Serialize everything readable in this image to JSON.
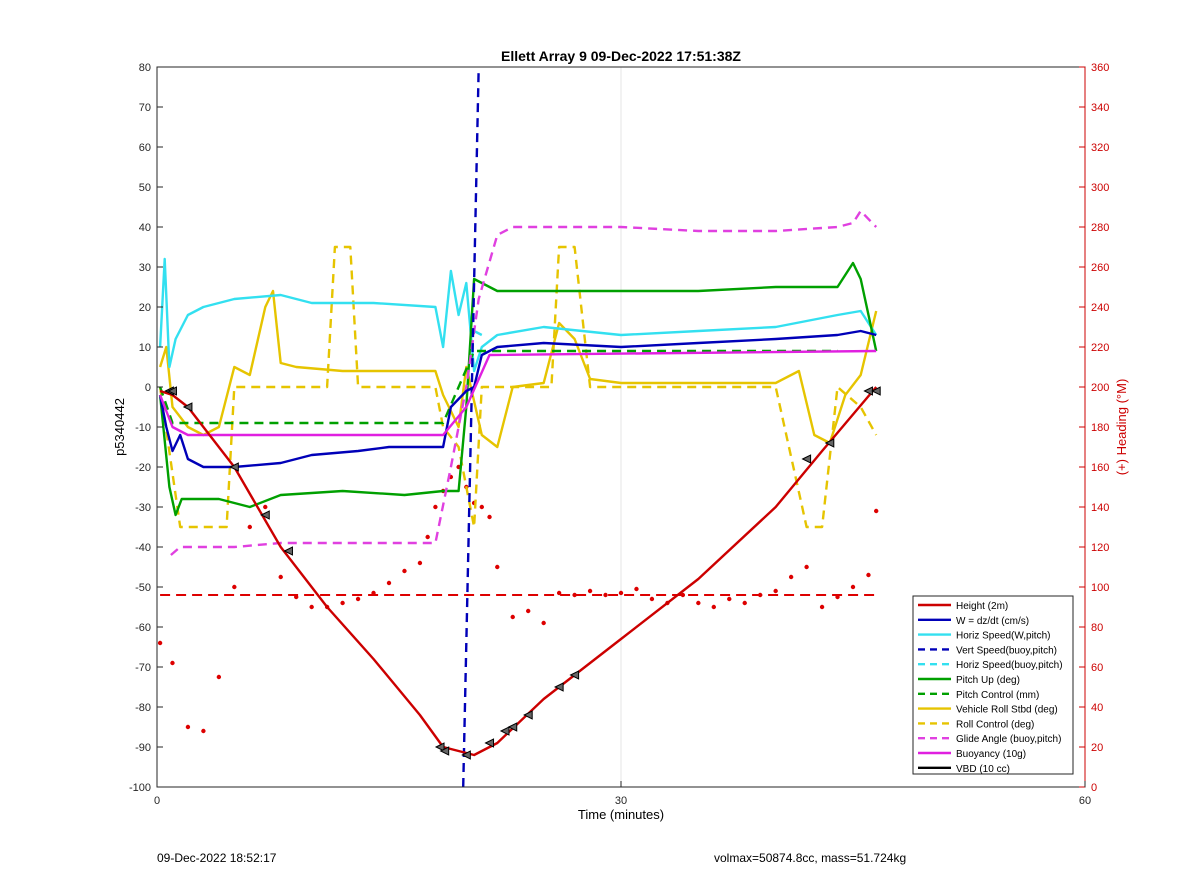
{
  "chart_data": {
    "type": "line",
    "title": "Ellett Array 9 09-Dec-2022 17:51:38Z",
    "xlabel": "Time (minutes)",
    "ylabel": "p5340442",
    "y2label": "(+) Heading (°M)",
    "xlim": [
      0,
      60
    ],
    "ylim": [
      -100,
      80
    ],
    "y2lim": [
      0,
      360
    ],
    "xticks": [
      "0",
      "30",
      "60"
    ],
    "yticks": [
      "-100",
      "-90",
      "-80",
      "-70",
      "-60",
      "-50",
      "-40",
      "-30",
      "-20",
      "-10",
      "0",
      "10",
      "20",
      "30",
      "40",
      "50",
      "60",
      "70",
      "80"
    ],
    "y2ticks": [
      "0",
      "20",
      "40",
      "60",
      "80",
      "100",
      "120",
      "140",
      "160",
      "180",
      "200",
      "220",
      "240",
      "260",
      "280",
      "300",
      "320",
      "340",
      "360"
    ],
    "grid": "vertical",
    "legend_position": "lower-right",
    "colors": {
      "height": "#cc0000",
      "w": "#0000b8",
      "horiz": "#33e0f0",
      "pitch": "#00a000",
      "roll": "#e6c400",
      "glide": "#e040e0",
      "buoyancy": "#e020e0",
      "vbd": "#000000",
      "heading": "#dd0000",
      "right_axis": "#cc0000"
    },
    "series": [
      {
        "name": "Height (2m)",
        "style": "solid",
        "color_key": "height",
        "x": [
          0.2,
          1.0,
          2.0,
          5.0,
          8.0,
          11.0,
          14.0,
          17.0,
          18.5,
          19.5,
          20.5,
          22.0,
          25.0,
          30.0,
          35.0,
          40.0,
          43.0,
          46.5
        ],
        "y": [
          -1,
          -2,
          -5,
          -20,
          -40,
          -55,
          -68,
          -82,
          -90,
          -91,
          -92,
          -89,
          -78,
          -63,
          -48,
          -30,
          -16,
          0
        ]
      },
      {
        "name": "W = dz/dt (cm/s)",
        "style": "solid",
        "color_key": "w",
        "x": [
          0.2,
          0.6,
          1.0,
          1.5,
          2.0,
          3.0,
          5.0,
          8.0,
          10.0,
          13.0,
          15.0,
          18.5,
          19.0,
          19.5,
          20.0,
          20.5,
          21.0,
          22.0,
          25.0,
          30.0,
          35.0,
          40.0,
          44.0,
          45.5,
          46.5
        ],
        "y": [
          -2,
          -10,
          -16,
          -12,
          -18,
          -20,
          -20,
          -19,
          -17,
          -16,
          -15,
          -15,
          -5,
          -3,
          -1,
          0,
          8,
          10,
          11,
          10,
          11,
          12,
          13,
          14,
          13
        ]
      },
      {
        "name": "Horiz Speed(W,pitch)",
        "style": "solid",
        "color_key": "horiz",
        "x": [
          0.2,
          0.5,
          0.8,
          1.2,
          2.0,
          3.0,
          5.0,
          8.0,
          10.0,
          14.0,
          18.0,
          18.5,
          19.0,
          19.5,
          20.0,
          20.5,
          21.0,
          22.0,
          25.0,
          30.0,
          35.0,
          40.0,
          44.0,
          45.5,
          46.5
        ],
        "y": [
          10,
          32,
          5,
          12,
          18,
          20,
          22,
          23,
          21,
          21,
          20,
          10,
          29,
          18,
          26,
          4,
          10,
          13,
          15,
          13,
          14,
          15,
          18,
          19,
          13
        ]
      },
      {
        "name": "Vert Speed(buoy,pitch)",
        "style": "dashed",
        "color_key": "w",
        "x": [
          19.8,
          20.3,
          20.8
        ],
        "y": [
          -100,
          -10,
          80
        ]
      },
      {
        "name": "Horiz Speed(buoy,pitch)",
        "style": "dashed",
        "color_key": "horiz",
        "x": [
          20.5,
          21.0
        ],
        "y": [
          14,
          13
        ]
      },
      {
        "name": "Pitch Up (deg)",
        "style": "solid",
        "color_key": "pitch",
        "x": [
          0.2,
          0.8,
          1.2,
          1.6,
          2.5,
          4.0,
          6.0,
          8.0,
          12.0,
          16.0,
          18.5,
          19.5,
          20.0,
          20.5,
          22.0,
          25.0,
          30.0,
          35.0,
          40.0,
          44.0,
          45.0,
          45.5,
          46.0,
          46.5
        ],
        "y": [
          -2,
          -25,
          -32,
          -28,
          -28,
          -28,
          -30,
          -27,
          -26,
          -27,
          -26,
          -26,
          -5,
          27,
          24,
          24,
          24,
          24,
          25,
          25,
          31,
          27,
          18,
          9
        ]
      },
      {
        "name": "Pitch Control (mm)",
        "style": "dashed",
        "color_key": "pitch",
        "x": [
          0.2,
          1.0,
          18.5,
          20.5,
          44.0
        ],
        "y": [
          0,
          -9,
          -9,
          9,
          9
        ]
      },
      {
        "name": "Vehicle Roll Stbd (deg)",
        "style": "solid",
        "color_key": "roll",
        "x": [
          0.2,
          0.6,
          1.0,
          2.0,
          3.0,
          4.0,
          5.0,
          6.0,
          7.0,
          7.5,
          8.0,
          9.0,
          12.0,
          18.0,
          18.5,
          19.5,
          20.0,
          21.0,
          22.0,
          23.0,
          25.0,
          26.0,
          27.0,
          28.0,
          30.0,
          35.0,
          40.0,
          41.5,
          42.5,
          43.5,
          44.5,
          45.5,
          46.5
        ],
        "y": [
          5,
          10,
          -5,
          -10,
          -12,
          -10,
          5,
          3,
          20,
          24,
          6,
          5,
          4,
          4,
          -2,
          -10,
          5,
          -12,
          -15,
          0,
          1,
          16,
          12,
          2,
          1,
          1,
          1,
          4,
          -12,
          -14,
          -2,
          3,
          19
        ]
      },
      {
        "name": "Roll Control (deg)",
        "style": "dashed",
        "color_key": "roll",
        "x": [
          0.2,
          1.5,
          4.5,
          5.0,
          8.0,
          11.0,
          11.5,
          12.5,
          13.0,
          16.0,
          18.0,
          18.5,
          19.5,
          20.5,
          21.0,
          22.0,
          23.0,
          25.5,
          26.0,
          27.0,
          28.0,
          32.0,
          40.0,
          42.0,
          43.0,
          44.0,
          45.5,
          46.5
        ],
        "y": [
          0,
          -35,
          -35,
          0,
          0,
          0,
          35,
          35,
          0,
          0,
          0,
          -10,
          -15,
          -35,
          0,
          0,
          0,
          0,
          35,
          35,
          0,
          0,
          0,
          -35,
          -35,
          0,
          -5,
          -12
        ]
      },
      {
        "name": "Glide Angle (buoy,pitch)",
        "style": "dashed",
        "color_key": "glide",
        "x": [
          0.9,
          1.5,
          3.0,
          5.0,
          8.0,
          11.0,
          15.0,
          18.0,
          19.0,
          20.0,
          20.8,
          22.0,
          23.0,
          25.0,
          30.0,
          35.0,
          40.0,
          44.0,
          45.0,
          45.5,
          46.5
        ],
        "y": [
          -42,
          -40,
          -40,
          -40,
          -39,
          -39,
          -39,
          -39,
          -20,
          0,
          22,
          38,
          40,
          40,
          40,
          39,
          39,
          40,
          41,
          44,
          40
        ]
      },
      {
        "name": "Buoyancy (10g)",
        "style": "solid",
        "color_key": "buoyancy",
        "x": [
          0.2,
          1.0,
          2.0,
          18.5,
          20.0,
          21.5,
          46.5
        ],
        "y": [
          -2,
          -10,
          -12,
          -12,
          -5,
          8,
          9
        ]
      },
      {
        "name": "VBD (10 cc)",
        "style": "solid",
        "color_key": "vbd",
        "x": [
          0.2,
          0.7,
          1.2,
          18.5,
          20.0,
          21.5,
          46.5
        ],
        "y": [
          -1,
          -9,
          -10,
          -10,
          -1,
          10,
          11
        ]
      }
    ],
    "heading_points": {
      "axis": "right",
      "color_key": "heading",
      "x": [
        0.2,
        1.0,
        2.0,
        3.0,
        4.0,
        5.0,
        6.0,
        7.0,
        8.0,
        9.0,
        10.0,
        11.0,
        12.0,
        13.0,
        14.0,
        15.0,
        16.0,
        17.0,
        17.5,
        18.0,
        18.5,
        19.0,
        19.5,
        20.0,
        20.5,
        21.0,
        21.5,
        22.0,
        23.0,
        24.0,
        25.0,
        26.0,
        27.0,
        28.0,
        29.0,
        30.0,
        31.0,
        32.0,
        33.0,
        34.0,
        35.0,
        36.0,
        37.0,
        38.0,
        39.0,
        40.0,
        41.0,
        42.0,
        43.0,
        44.0,
        45.0,
        46.0,
        46.5
      ],
      "y": [
        72,
        62,
        30,
        28,
        55,
        100,
        130,
        140,
        105,
        95,
        90,
        90,
        92,
        94,
        97,
        102,
        108,
        112,
        125,
        140,
        148,
        155,
        160,
        150,
        142,
        140,
        135,
        110,
        85,
        88,
        82,
        97,
        96,
        98,
        96,
        97,
        99,
        94,
        92,
        96,
        92,
        90,
        94,
        92,
        96,
        98,
        105,
        110,
        90,
        95,
        100,
        106,
        138
      ]
    },
    "reference_line": {
      "axis": "left",
      "y": -52,
      "style": "dashed",
      "color_key": "heading"
    },
    "markers": {
      "series": "Height (2m)",
      "x": [
        0.8,
        1.0,
        2.0,
        5.0,
        7.0,
        8.5,
        18.3,
        18.6,
        20.0,
        21.5,
        22.5,
        23.0,
        24.0,
        26.0,
        27.0,
        42.0,
        43.5,
        46.0,
        46.5
      ],
      "y": [
        -1,
        -1,
        -5,
        -20,
        -32,
        -41,
        -90,
        -91,
        -92,
        -89,
        -86,
        -85,
        -82,
        -75,
        -72,
        -18,
        -14,
        -1,
        -1
      ]
    },
    "footer_left": "09-Dec-2022 18:52:17",
    "footer_right": "volmax=50874.8cc, mass=51.724kg"
  }
}
